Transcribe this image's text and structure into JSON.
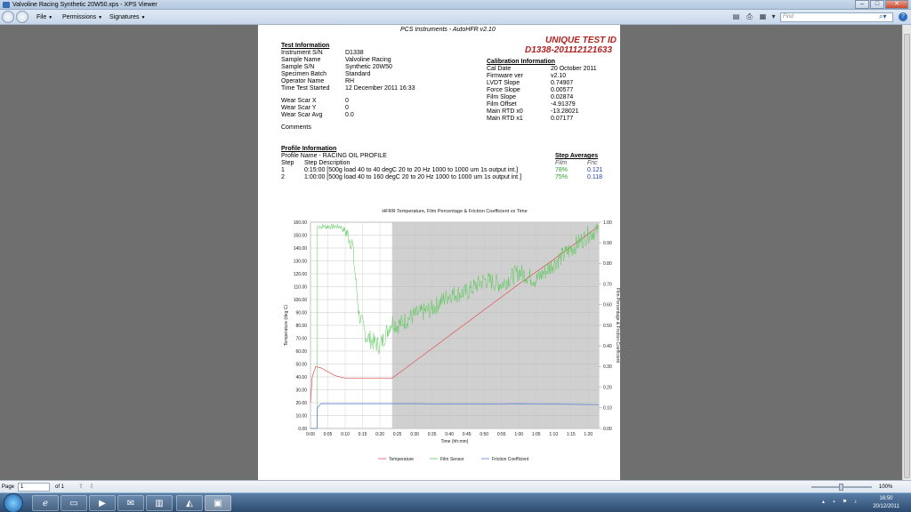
{
  "window": {
    "title": "Valvoline Racing Synthetic 20W50.xps - XPS Viewer"
  },
  "menu": {
    "file": "File",
    "permissions": "Permissions",
    "signatures": "Signatures"
  },
  "find": {
    "placeholder": "Find"
  },
  "document": {
    "header": "PCS Instruments - AutoHFR v2.10",
    "unique_label": "UNIQUE TEST ID",
    "unique_id": "D1338-201112121633",
    "test_info": {
      "heading": "Test Information",
      "rows": [
        {
          "label": "Instrument S/N",
          "value": "D1338"
        },
        {
          "label": "Sample Name",
          "value": "Valvoline Racing"
        },
        {
          "label": "Sample S/N",
          "value": "Synthetic 20W50"
        },
        {
          "label": "Specimen Batch",
          "value": "Standard"
        },
        {
          "label": "Operator Name",
          "value": "RH"
        },
        {
          "label": "Time Test Started",
          "value": "12 December 2011 16:33"
        }
      ],
      "wear": [
        {
          "label": "Wear Scar X",
          "value": "0"
        },
        {
          "label": "Wear Scar Y",
          "value": "0"
        },
        {
          "label": "Wear Scar Avg",
          "value": "0.0"
        }
      ],
      "comments": "Comments"
    },
    "calibration": {
      "heading": "Calibration Information",
      "rows": [
        {
          "label": "Cal Date",
          "value": "20 October 2011"
        },
        {
          "label": "Firmware ver",
          "value": "v2.10"
        },
        {
          "label": "LVDT Slope",
          "value": "0.74907"
        },
        {
          "label": "Force Slope",
          "value": "0.00577"
        },
        {
          "label": "Film Slope",
          "value": "0.02874"
        },
        {
          "label": "Film Offset",
          "value": "-4.91379"
        },
        {
          "label": "Main RTD x0",
          "value": "-13.28021"
        },
        {
          "label": "Main RTD x1",
          "value": "0.07177"
        }
      ]
    },
    "profile": {
      "heading": "Profile Information",
      "name": "Profile Name - RACING OIL PROFILE",
      "col_step": "Step",
      "col_desc": "Step Description",
      "steps": [
        {
          "step": "1",
          "desc": "0:15:00 [500g load  40 to 40 degC  20 to 20 Hz  1000 to 1000 um  1s output int.]"
        },
        {
          "step": "2",
          "desc": "1:00:00 [500g load  40 to 160 degC  20 to 20 Hz  1000 to 1000 um  1s output int.]"
        }
      ],
      "averages_heading": "Step Averages",
      "col_film": "Film",
      "col_fric": "Fric",
      "averages": [
        {
          "film": "78%",
          "fric": "0.121"
        },
        {
          "film": "75%",
          "fric": "0.118"
        }
      ]
    }
  },
  "chart_data": {
    "type": "line",
    "title": "HFRR Temperature, Film Percentage & Friction Coefficient vs Time",
    "xlabel": "Time (hh:mm)",
    "ylabel_left": "Temperature (deg C)",
    "ylabel_right": "Film Percentage & Friction Coefficient",
    "x_ticks": [
      "0:00",
      "0:05",
      "0:10",
      "0:15",
      "0:20",
      "0:25",
      "0:30",
      "0:35",
      "0:40",
      "0:45",
      "0:50",
      "0:55",
      "1:00",
      "1:05",
      "1:10",
      "1:15",
      "1:20"
    ],
    "y_left_ticks": [
      "0.00",
      "10.00",
      "20.00",
      "30.00",
      "40.00",
      "50.00",
      "60.00",
      "70.00",
      "80.00",
      "90.00",
      "100.00",
      "110.00",
      "120.00",
      "130.00",
      "140.00",
      "150.00",
      "160.00"
    ],
    "y_right_ticks": [
      "0.00",
      "0.10",
      "0.20",
      "0.30",
      "0.40",
      "0.50",
      "0.60",
      "0.70",
      "0.80",
      "0.90",
      "1.00"
    ],
    "xlim_minutes": [
      0,
      83
    ],
    "ylim_left": [
      0,
      160
    ],
    "ylim_right": [
      0,
      1
    ],
    "shaded_region_minutes": [
      23.5,
      83
    ],
    "grid": true,
    "legend_position": "bottom",
    "series": [
      {
        "name": "Temperature",
        "axis": "left",
        "color": "#e05050",
        "x": [
          0,
          0.5,
          1.5,
          3,
          5,
          7,
          10,
          15,
          20,
          23.5,
          30,
          40,
          50,
          60,
          70,
          80,
          83
        ],
        "y": [
          20,
          40,
          48,
          47,
          44,
          41,
          39,
          39,
          39,
          39,
          52,
          72,
          92,
          112,
          131,
          151,
          157
        ]
      },
      {
        "name": "Film Sensor",
        "axis": "right",
        "color": "#5bc85b",
        "x": [
          0,
          1.9,
          2,
          8.6,
          9,
          10,
          12,
          14,
          16,
          18,
          20,
          22,
          23.5,
          25,
          30,
          35,
          40,
          45,
          50,
          55,
          60,
          65,
          70,
          75,
          80,
          83
        ],
        "y": [
          0,
          0,
          0.98,
          0.98,
          0.97,
          0.96,
          0.9,
          0.55,
          0.45,
          0.42,
          0.4,
          0.47,
          0.52,
          0.5,
          0.55,
          0.58,
          0.65,
          0.66,
          0.72,
          0.7,
          0.76,
          0.72,
          0.8,
          0.87,
          0.94,
          0.97
        ]
      },
      {
        "name": "Friction Coefficient",
        "axis": "right",
        "color": "#5b7bd5",
        "x": [
          0,
          1.9,
          2,
          3,
          5,
          10,
          20,
          30,
          40,
          50,
          60,
          70,
          80,
          83
        ],
        "y": [
          0,
          0,
          0.1,
          0.12,
          0.12,
          0.12,
          0.12,
          0.12,
          0.118,
          0.118,
          0.12,
          0.118,
          0.116,
          0.115
        ]
      }
    ]
  },
  "status": {
    "page_label": "Page",
    "page_value": "1",
    "of_label": "of 1",
    "zoom": "100%"
  },
  "taskbar": {
    "time": "16:50",
    "date": "20/12/2011"
  },
  "colors": {
    "chart_shade": "#d0d0d0",
    "unique_red": "#b22222",
    "film_green": "#5bc85b",
    "fric_blue": "#5b7bd5",
    "temp_red": "#e05050"
  }
}
